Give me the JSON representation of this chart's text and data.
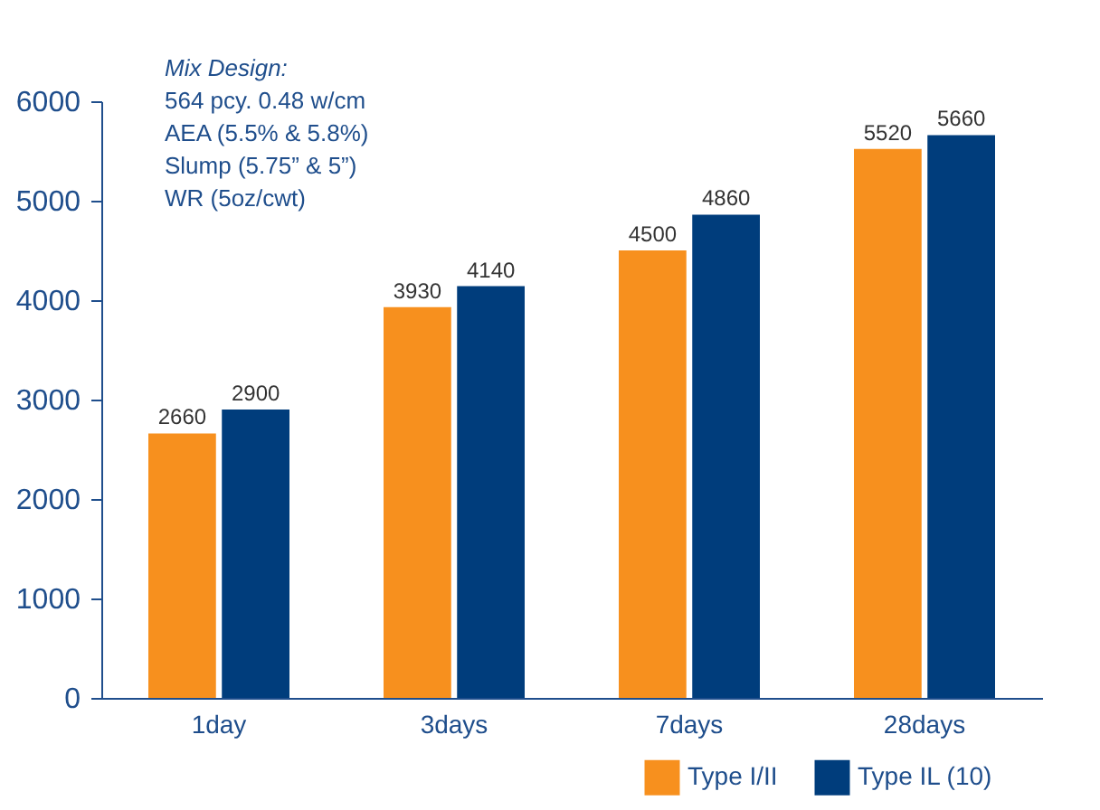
{
  "chart_data": {
    "type": "bar",
    "categories": [
      "1day",
      "3days",
      "7days",
      "28days"
    ],
    "series": [
      {
        "name": "Type I/II",
        "color": "#f7901e",
        "values": [
          2660,
          3930,
          4500,
          5520
        ]
      },
      {
        "name": "Type IL (10)",
        "color": "#003d7c",
        "values": [
          2900,
          4140,
          4860,
          5660
        ]
      }
    ],
    "ylim": [
      0,
      6000
    ],
    "yticks": [
      0,
      1000,
      2000,
      3000,
      4000,
      5000,
      6000
    ],
    "grid": false,
    "legend": "bottom right",
    "data_labels": true,
    "annotations": [
      "Mix Design:",
      "564 pcy.  0.48 w/cm",
      "AEA (5.5% & 5.8%)",
      "Slump (5.75” & 5”)",
      "WR (5oz/cwt)"
    ]
  }
}
